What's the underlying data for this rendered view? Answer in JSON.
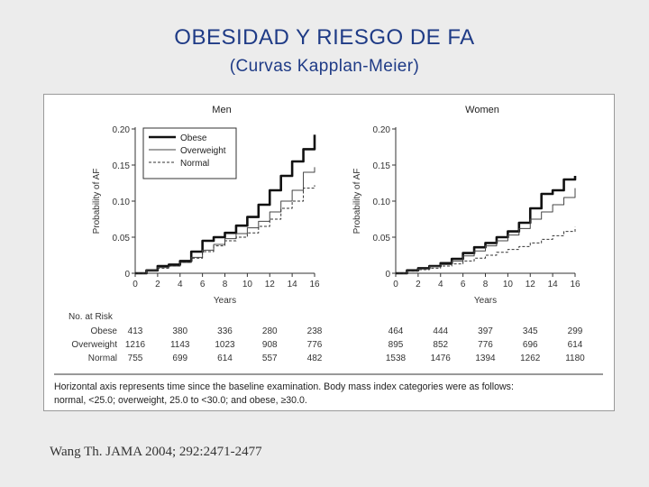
{
  "slide": {
    "title": "OBESIDAD Y RIESGO DE FA",
    "subtitle": "(Curvas Kapplan-Meier)",
    "citation": "Wang Th. JAMA 2004; 292:2471-2477"
  },
  "figure": {
    "risk_header": "No. at Risk",
    "risk_groups": [
      "Obese",
      "Overweight",
      "Normal"
    ],
    "footnote_lines": [
      "Horizontal axis represents time since the baseline examination. Body mass index categories were as follows:",
      "normal, <25.0; overweight, 25.0 to <30.0; and obese, ≥30.0."
    ],
    "colors": {
      "obese": "#111111",
      "overweight": "#444444",
      "normal": "#333333"
    }
  },
  "chart_data": [
    {
      "type": "line",
      "title": "Men",
      "xlabel": "Years",
      "ylabel": "Probability of AF",
      "xlim": [
        0,
        16
      ],
      "ylim": [
        0,
        0.2
      ],
      "x_ticks": [
        "0",
        "2",
        "4",
        "6",
        "8",
        "10",
        "12",
        "14",
        "16"
      ],
      "y_ticks": [
        {
          "value": 0,
          "label": "0"
        },
        {
          "value": 0.05,
          "label": "0.05"
        },
        {
          "value": 0.1,
          "label": "0.10"
        },
        {
          "value": 0.15,
          "label": "0.15"
        },
        {
          "value": 0.2,
          "label": "0.20"
        }
      ],
      "legend": [
        "Obese",
        "Overweight",
        "Normal"
      ],
      "legend_position": "top-left",
      "series": [
        {
          "name": "Obese",
          "style": "thick",
          "x": [
            0,
            1,
            2,
            3,
            4,
            5,
            6,
            7,
            8,
            9,
            10,
            11,
            12,
            13,
            14,
            15,
            16
          ],
          "values": [
            0,
            0.004,
            0.01,
            0.012,
            0.017,
            0.03,
            0.045,
            0.05,
            0.056,
            0.066,
            0.078,
            0.095,
            0.115,
            0.135,
            0.155,
            0.172,
            0.192
          ]
        },
        {
          "name": "Overweight",
          "style": "thin",
          "x": [
            0,
            1,
            2,
            3,
            4,
            5,
            6,
            7,
            8,
            9,
            10,
            11,
            12,
            13,
            14,
            15,
            16
          ],
          "values": [
            0,
            0.004,
            0.008,
            0.01,
            0.015,
            0.022,
            0.032,
            0.04,
            0.048,
            0.055,
            0.063,
            0.072,
            0.085,
            0.1,
            0.115,
            0.14,
            0.147
          ]
        },
        {
          "name": "Normal",
          "style": "dashed",
          "x": [
            0,
            1,
            2,
            3,
            4,
            5,
            6,
            7,
            8,
            9,
            10,
            11,
            12,
            13,
            14,
            15,
            16
          ],
          "values": [
            0,
            0.004,
            0.007,
            0.01,
            0.015,
            0.021,
            0.03,
            0.038,
            0.045,
            0.05,
            0.056,
            0.065,
            0.075,
            0.09,
            0.1,
            0.118,
            0.122
          ]
        }
      ],
      "risk_ticks": [
        "0",
        "2",
        "4",
        "6",
        "8",
        "10",
        "12",
        "14",
        "16"
      ],
      "at_risk_columns": [
        0,
        4,
        8,
        12,
        16
      ],
      "at_risk": {
        "Obese": [
          "413",
          "380",
          "336",
          "280",
          "238"
        ],
        "Overweight": [
          "1216",
          "1143",
          "1023",
          "908",
          "776"
        ],
        "Normal": [
          "755",
          "699",
          "614",
          "557",
          "482"
        ]
      }
    },
    {
      "type": "line",
      "title": "Women",
      "xlabel": "Years",
      "ylabel": "Probability of AF",
      "xlim": [
        0,
        16
      ],
      "ylim": [
        0,
        0.2
      ],
      "x_ticks": [
        "0",
        "2",
        "4",
        "6",
        "8",
        "10",
        "12",
        "14",
        "16"
      ],
      "y_ticks": [
        {
          "value": 0,
          "label": "0"
        },
        {
          "value": 0.05,
          "label": "0.05"
        },
        {
          "value": 0.1,
          "label": "0.10"
        },
        {
          "value": 0.15,
          "label": "0.15"
        },
        {
          "value": 0.2,
          "label": "0.20"
        }
      ],
      "series": [
        {
          "name": "Obese",
          "style": "thick",
          "x": [
            0,
            1,
            2,
            3,
            4,
            5,
            6,
            7,
            8,
            9,
            10,
            11,
            12,
            13,
            14,
            15,
            16
          ],
          "values": [
            0,
            0.004,
            0.007,
            0.01,
            0.014,
            0.02,
            0.028,
            0.036,
            0.042,
            0.05,
            0.058,
            0.07,
            0.09,
            0.11,
            0.115,
            0.13,
            0.135
          ]
        },
        {
          "name": "Overweight",
          "style": "thin",
          "x": [
            0,
            1,
            2,
            3,
            4,
            5,
            6,
            7,
            8,
            9,
            10,
            11,
            12,
            13,
            14,
            15,
            16
          ],
          "values": [
            0,
            0.003,
            0.006,
            0.009,
            0.012,
            0.017,
            0.024,
            0.031,
            0.038,
            0.045,
            0.053,
            0.062,
            0.075,
            0.085,
            0.095,
            0.105,
            0.118
          ]
        },
        {
          "name": "Normal",
          "style": "dashed",
          "x": [
            0,
            1,
            2,
            3,
            4,
            5,
            6,
            7,
            8,
            9,
            10,
            11,
            12,
            13,
            14,
            15,
            16
          ],
          "values": [
            0,
            0.003,
            0.005,
            0.007,
            0.01,
            0.013,
            0.017,
            0.021,
            0.025,
            0.029,
            0.033,
            0.037,
            0.042,
            0.047,
            0.052,
            0.058,
            0.064
          ]
        }
      ],
      "risk_ticks": [
        "0",
        "2",
        "4",
        "6",
        "8",
        "10",
        "12",
        "14",
        "16"
      ],
      "at_risk_columns": [
        0,
        4,
        8,
        12,
        16
      ],
      "at_risk": {
        "Obese": [
          "464",
          "444",
          "397",
          "345",
          "299"
        ],
        "Overweight": [
          "895",
          "852",
          "776",
          "696",
          "614"
        ],
        "Normal": [
          "1538",
          "1476",
          "1394",
          "1262",
          "1180"
        ]
      }
    }
  ]
}
